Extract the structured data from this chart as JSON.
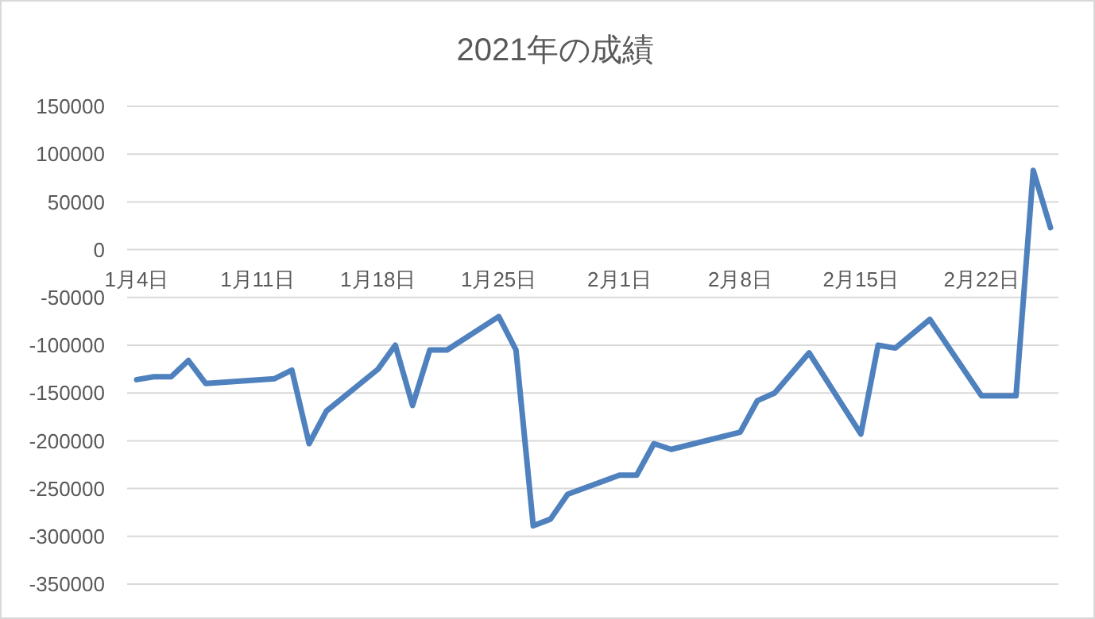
{
  "chart_data": {
    "type": "line",
    "title": "2021年の成績",
    "x": [
      "--01-04",
      "--01-05",
      "--01-06",
      "--01-07",
      "--01-08",
      "--01-12",
      "--01-13",
      "--01-14",
      "--01-15",
      "--01-18",
      "--01-19",
      "--01-20",
      "--01-21",
      "--01-22",
      "--01-25",
      "--01-26",
      "--01-27",
      "--01-28",
      "--01-29",
      "--02-01",
      "--02-02",
      "--02-03",
      "--02-04",
      "--02-08",
      "--02-09",
      "--02-10",
      "--02-12",
      "--02-15",
      "--02-16",
      "--02-17",
      "--02-19",
      "--02-22",
      "--02-24",
      "--02-25",
      "--02-26"
    ],
    "series": [
      {
        "color": "#4e81bd",
        "values": [
          -136000,
          -133000,
          -133000,
          -116000,
          -140000,
          -135000,
          -126000,
          -203000,
          -169000,
          -125000,
          -100000,
          -163000,
          -105000,
          -105000,
          -70000,
          -105000,
          -289000,
          -282000,
          -256000,
          -236000,
          -236000,
          -203000,
          -209000,
          -191000,
          -158000,
          -150000,
          -108000,
          -193000,
          -100000,
          -103000,
          -73000,
          -153000,
          -153000,
          83000,
          23000
        ]
      }
    ],
    "xlim": [
      "--01-04",
      "--02-26"
    ],
    "xticks": [
      {
        "value": "--01-04",
        "label": "1月4日"
      },
      {
        "value": "--01-11",
        "label": "1月11日"
      },
      {
        "value": "--01-18",
        "label": "1月18日"
      },
      {
        "value": "--01-25",
        "label": "1月25日"
      },
      {
        "value": "--02-01",
        "label": "2月1日"
      },
      {
        "value": "--02-08",
        "label": "2月8日"
      },
      {
        "value": "--02-15",
        "label": "2月15日"
      },
      {
        "value": "--02-22",
        "label": "2月22日"
      }
    ],
    "ylim": [
      -350000,
      150000
    ],
    "yticks": [
      -350000,
      -300000,
      -250000,
      -200000,
      -150000,
      -100000,
      -50000,
      0,
      50000,
      100000,
      150000
    ],
    "grid": "y",
    "marker": "none",
    "line_style": "solid"
  }
}
